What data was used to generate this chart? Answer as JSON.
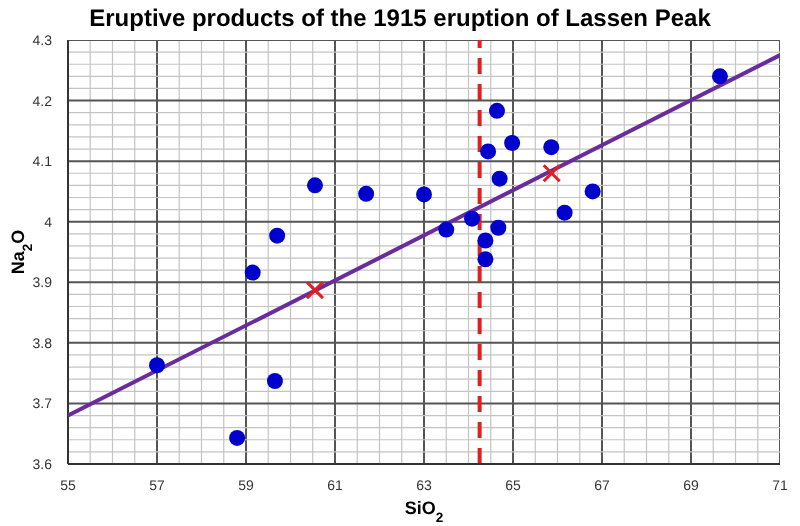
{
  "chart_data": {
    "type": "scatter",
    "title": "Eruptive products of the 1915 eruption of Lassen Peak",
    "xlabel": "SiO$_{2}$",
    "ylabel": "Na$_{2}$O",
    "xlim": [
      55,
      71
    ],
    "ylim": [
      3.6,
      4.3
    ],
    "xticks": [
      55,
      {
        "value": 55.5,
        "label": null
      },
      {
        "value": 56,
        "label": null
      },
      {
        "value": 56.5,
        "label": null
      },
      57,
      {
        "value": 57.5,
        "label": null
      },
      {
        "value": 58,
        "label": null
      },
      {
        "value": 58.5,
        "label": null
      },
      59,
      {
        "value": 59.5,
        "label": null
      },
      {
        "value": 60,
        "label": null
      },
      {
        "value": 60.5,
        "label": null
      },
      61,
      {
        "value": 61.5,
        "label": null
      },
      {
        "value": 62,
        "label": null
      },
      {
        "value": 62.5,
        "label": null
      },
      63,
      {
        "value": 63.5,
        "label": null
      },
      {
        "value": 64,
        "label": null
      },
      {
        "value": 64.5,
        "label": null
      },
      65,
      {
        "value": 65.5,
        "label": null
      },
      {
        "value": 66,
        "label": null
      },
      {
        "value": 66.5,
        "label": null
      },
      67,
      {
        "value": 67.5,
        "label": null
      },
      {
        "value": 68,
        "label": null
      },
      {
        "value": 68.5,
        "label": null
      },
      69,
      {
        "value": 69.5,
        "label": null
      },
      {
        "value": 70,
        "label": null
      },
      {
        "value": 70.5,
        "label": null
      },
      71
    ],
    "yticks": [
      3.6,
      {
        "value": 3.62,
        "label": null
      },
      {
        "value": 3.64,
        "label": null
      },
      {
        "value": 3.66,
        "label": null
      },
      {
        "value": 3.68,
        "label": null
      },
      3.7,
      {
        "value": 3.72,
        "label": null
      },
      {
        "value": 3.74,
        "label": null
      },
      {
        "value": 3.76,
        "label": null
      },
      {
        "value": 3.78,
        "label": null
      },
      3.8,
      {
        "value": 3.82,
        "label": null
      },
      {
        "value": 3.84,
        "label": null
      },
      {
        "value": 3.86,
        "label": null
      },
      {
        "value": 3.88,
        "label": null
      },
      3.9,
      {
        "value": 3.92,
        "label": null
      },
      {
        "value": 3.94,
        "label": null
      },
      {
        "value": 3.96,
        "label": null
      },
      {
        "value": 3.98,
        "label": null
      },
      4,
      {
        "value": 4.02,
        "label": null
      },
      {
        "value": 4.04,
        "label": null
      },
      {
        "value": 4.06,
        "label": null
      },
      {
        "value": 4.08,
        "label": null
      },
      4.1,
      {
        "value": 4.12,
        "label": null
      },
      {
        "value": 4.14,
        "label": null
      },
      {
        "value": 4.16,
        "label": null
      },
      {
        "value": 4.18,
        "label": null
      },
      4.2,
      {
        "value": 4.22,
        "label": null
      },
      {
        "value": 4.24,
        "label": null
      },
      {
        "value": 4.26,
        "label": null
      },
      {
        "value": 4.28,
        "label": null
      },
      4.3
    ],
    "grid": true,
    "series": [
      {
        "type": "line",
        "color": "#6a2c9a",
        "x": [
          55,
          71
        ],
        "values": [
          3.68,
          4.275
        ],
        "marker": "none"
      },
      {
        "color": "#0000cc",
        "marker": "circle",
        "x": [
          57,
          58.8,
          59.15,
          59.7,
          59.65,
          60.55,
          61.7,
          63,
          63.5,
          64.08,
          64.38,
          64.38,
          64.67,
          64.64,
          64.44,
          64.98,
          64.7,
          65.86,
          66.16,
          66.79,
          69.65
        ],
        "values": [
          3.763,
          3.643,
          3.916,
          3.977,
          3.737,
          4.06,
          4.046,
          4.045,
          3.987,
          4.005,
          3.969,
          3.938,
          3.99,
          4.183,
          4.116,
          4.13,
          4.071,
          4.123,
          4.015,
          4.05,
          4.24
        ]
      },
      {
        "type": "scatter",
        "color": "#e02020",
        "marker": "cross",
        "x": [
          60.55,
          65.87
        ],
        "values": [
          3.887,
          4.08
        ]
      }
    ],
    "ref_lines": [
      {
        "axis": "x",
        "value": 64.25,
        "color": "#e02020",
        "line_style": "dashed"
      }
    ]
  }
}
